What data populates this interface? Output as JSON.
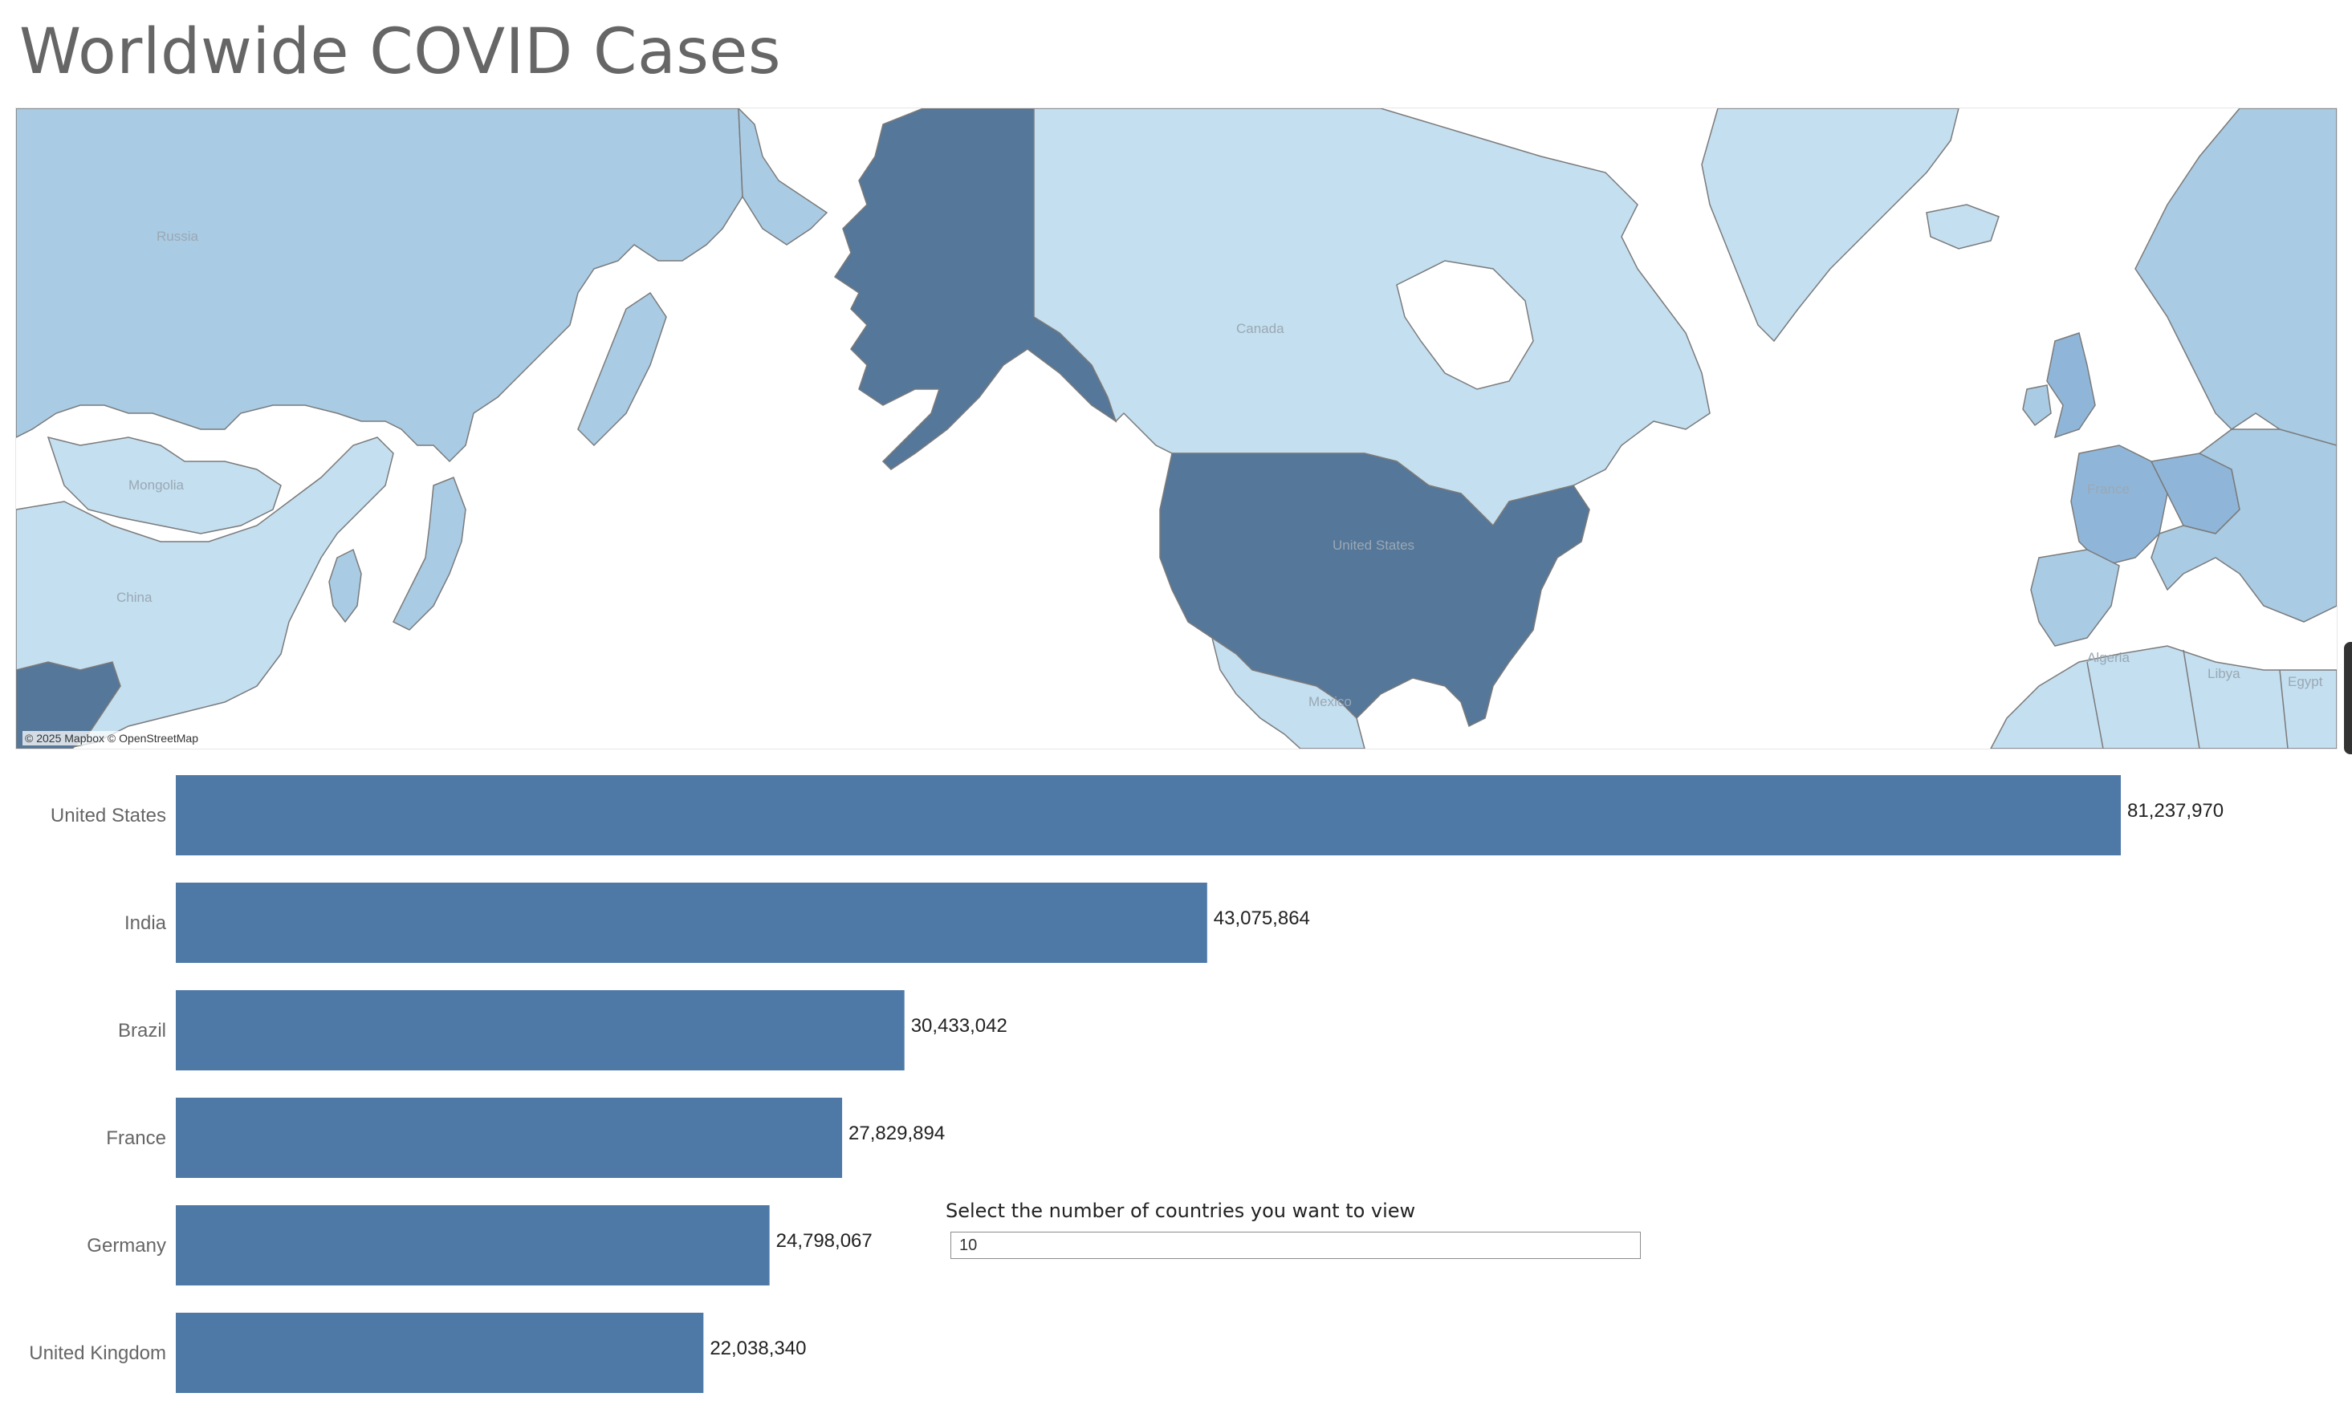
{
  "title": "Worldwide COVID Cases",
  "map": {
    "attribution": "© 2025 Mapbox © OpenStreetMap",
    "labels": [
      "Russia",
      "Canada",
      "Mongolia",
      "China",
      "United States",
      "Mexico",
      "Algeria",
      "Libya",
      "Egypt",
      "France"
    ],
    "colors": {
      "highest": "#557799",
      "high": "#a9cbe3",
      "low": "#c4dff0",
      "mid": "#8fb6d9",
      "land_none": "#ffffff"
    }
  },
  "parameter": {
    "label": "Select the number of countries you want to view",
    "value": "10"
  },
  "chart_data": {
    "type": "bar",
    "orientation": "horizontal",
    "categories": [
      "United States",
      "India",
      "Brazil",
      "France",
      "Germany",
      "United Kingdom"
    ],
    "values": [
      81237970,
      43075864,
      30433042,
      27829894,
      24798067,
      22038340
    ],
    "value_labels": [
      "81,237,970",
      "43,075,864",
      "30,433,042",
      "27,829,894",
      "24,798,067",
      "22,038,340"
    ],
    "bar_color": "#4e79a7",
    "grid": false
  }
}
